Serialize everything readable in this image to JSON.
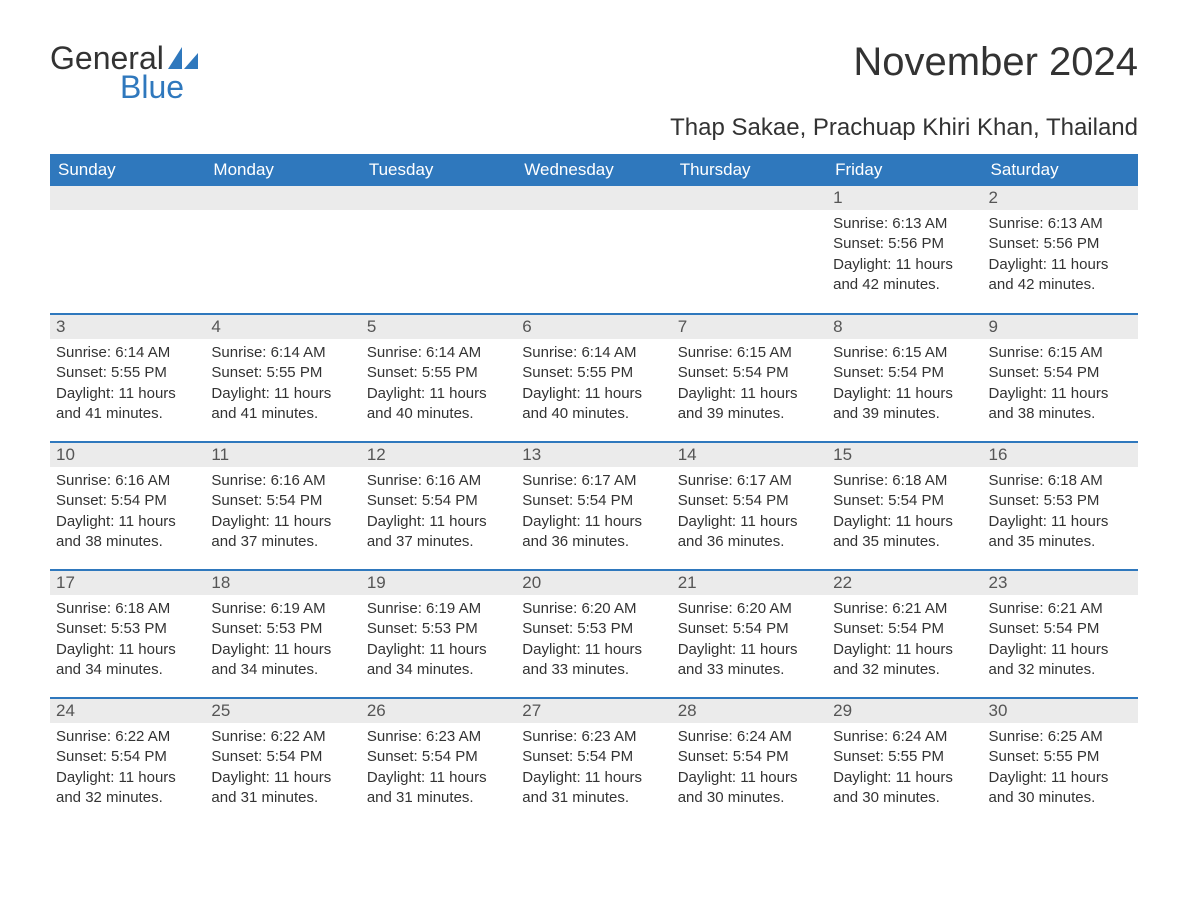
{
  "logo": {
    "general": "General",
    "blue": "Blue",
    "sail_color": "#2f78bd"
  },
  "title": "November 2024",
  "location": "Thap Sakae, Prachuap Khiri Khan, Thailand",
  "colors": {
    "header_bg": "#2f78bd",
    "header_text": "#ffffff",
    "daynum_bg": "#ebebeb",
    "daynum_text": "#555555",
    "body_text": "#333333",
    "row_border": "#2f78bd",
    "page_bg": "#ffffff"
  },
  "typography": {
    "title_fontsize": 40,
    "location_fontsize": 24,
    "weekday_fontsize": 17,
    "daynum_fontsize": 17,
    "cell_fontsize": 15
  },
  "weekdays": [
    "Sunday",
    "Monday",
    "Tuesday",
    "Wednesday",
    "Thursday",
    "Friday",
    "Saturday"
  ],
  "labels": {
    "sunrise": "Sunrise:",
    "sunset": "Sunset:",
    "daylight": "Daylight:"
  },
  "weeks": [
    [
      {
        "blank": true
      },
      {
        "blank": true
      },
      {
        "blank": true
      },
      {
        "blank": true
      },
      {
        "blank": true
      },
      {
        "day": "1",
        "sunrise": "6:13 AM",
        "sunset": "5:56 PM",
        "daylight": "11 hours and 42 minutes."
      },
      {
        "day": "2",
        "sunrise": "6:13 AM",
        "sunset": "5:56 PM",
        "daylight": "11 hours and 42 minutes."
      }
    ],
    [
      {
        "day": "3",
        "sunrise": "6:14 AM",
        "sunset": "5:55 PM",
        "daylight": "11 hours and 41 minutes."
      },
      {
        "day": "4",
        "sunrise": "6:14 AM",
        "sunset": "5:55 PM",
        "daylight": "11 hours and 41 minutes."
      },
      {
        "day": "5",
        "sunrise": "6:14 AM",
        "sunset": "5:55 PM",
        "daylight": "11 hours and 40 minutes."
      },
      {
        "day": "6",
        "sunrise": "6:14 AM",
        "sunset": "5:55 PM",
        "daylight": "11 hours and 40 minutes."
      },
      {
        "day": "7",
        "sunrise": "6:15 AM",
        "sunset": "5:54 PM",
        "daylight": "11 hours and 39 minutes."
      },
      {
        "day": "8",
        "sunrise": "6:15 AM",
        "sunset": "5:54 PM",
        "daylight": "11 hours and 39 minutes."
      },
      {
        "day": "9",
        "sunrise": "6:15 AM",
        "sunset": "5:54 PM",
        "daylight": "11 hours and 38 minutes."
      }
    ],
    [
      {
        "day": "10",
        "sunrise": "6:16 AM",
        "sunset": "5:54 PM",
        "daylight": "11 hours and 38 minutes."
      },
      {
        "day": "11",
        "sunrise": "6:16 AM",
        "sunset": "5:54 PM",
        "daylight": "11 hours and 37 minutes."
      },
      {
        "day": "12",
        "sunrise": "6:16 AM",
        "sunset": "5:54 PM",
        "daylight": "11 hours and 37 minutes."
      },
      {
        "day": "13",
        "sunrise": "6:17 AM",
        "sunset": "5:54 PM",
        "daylight": "11 hours and 36 minutes."
      },
      {
        "day": "14",
        "sunrise": "6:17 AM",
        "sunset": "5:54 PM",
        "daylight": "11 hours and 36 minutes."
      },
      {
        "day": "15",
        "sunrise": "6:18 AM",
        "sunset": "5:54 PM",
        "daylight": "11 hours and 35 minutes."
      },
      {
        "day": "16",
        "sunrise": "6:18 AM",
        "sunset": "5:53 PM",
        "daylight": "11 hours and 35 minutes."
      }
    ],
    [
      {
        "day": "17",
        "sunrise": "6:18 AM",
        "sunset": "5:53 PM",
        "daylight": "11 hours and 34 minutes."
      },
      {
        "day": "18",
        "sunrise": "6:19 AM",
        "sunset": "5:53 PM",
        "daylight": "11 hours and 34 minutes."
      },
      {
        "day": "19",
        "sunrise": "6:19 AM",
        "sunset": "5:53 PM",
        "daylight": "11 hours and 34 minutes."
      },
      {
        "day": "20",
        "sunrise": "6:20 AM",
        "sunset": "5:53 PM",
        "daylight": "11 hours and 33 minutes."
      },
      {
        "day": "21",
        "sunrise": "6:20 AM",
        "sunset": "5:54 PM",
        "daylight": "11 hours and 33 minutes."
      },
      {
        "day": "22",
        "sunrise": "6:21 AM",
        "sunset": "5:54 PM",
        "daylight": "11 hours and 32 minutes."
      },
      {
        "day": "23",
        "sunrise": "6:21 AM",
        "sunset": "5:54 PM",
        "daylight": "11 hours and 32 minutes."
      }
    ],
    [
      {
        "day": "24",
        "sunrise": "6:22 AM",
        "sunset": "5:54 PM",
        "daylight": "11 hours and 32 minutes."
      },
      {
        "day": "25",
        "sunrise": "6:22 AM",
        "sunset": "5:54 PM",
        "daylight": "11 hours and 31 minutes."
      },
      {
        "day": "26",
        "sunrise": "6:23 AM",
        "sunset": "5:54 PM",
        "daylight": "11 hours and 31 minutes."
      },
      {
        "day": "27",
        "sunrise": "6:23 AM",
        "sunset": "5:54 PM",
        "daylight": "11 hours and 31 minutes."
      },
      {
        "day": "28",
        "sunrise": "6:24 AM",
        "sunset": "5:54 PM",
        "daylight": "11 hours and 30 minutes."
      },
      {
        "day": "29",
        "sunrise": "6:24 AM",
        "sunset": "5:55 PM",
        "daylight": "11 hours and 30 minutes."
      },
      {
        "day": "30",
        "sunrise": "6:25 AM",
        "sunset": "5:55 PM",
        "daylight": "11 hours and 30 minutes."
      }
    ]
  ]
}
